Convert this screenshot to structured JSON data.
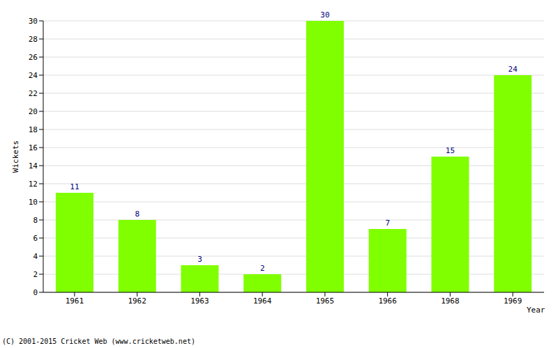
{
  "chart_data": {
    "type": "bar",
    "categories": [
      "1961",
      "1962",
      "1963",
      "1964",
      "1965",
      "1966",
      "1968",
      "1969"
    ],
    "values": [
      11,
      8,
      3,
      2,
      30,
      7,
      15,
      24
    ],
    "color": "#80ff00",
    "ylim": [
      0,
      30
    ],
    "yticks": [
      0,
      2,
      4,
      6,
      8,
      10,
      12,
      14,
      16,
      18,
      20,
      22,
      24,
      26,
      28,
      30
    ],
    "grid": true,
    "data_labels": true,
    "x_label": "Year",
    "y_label": "Wickets",
    "footer": "(C) 2001-2015 Cricket Web (www.cricketweb.net)"
  }
}
